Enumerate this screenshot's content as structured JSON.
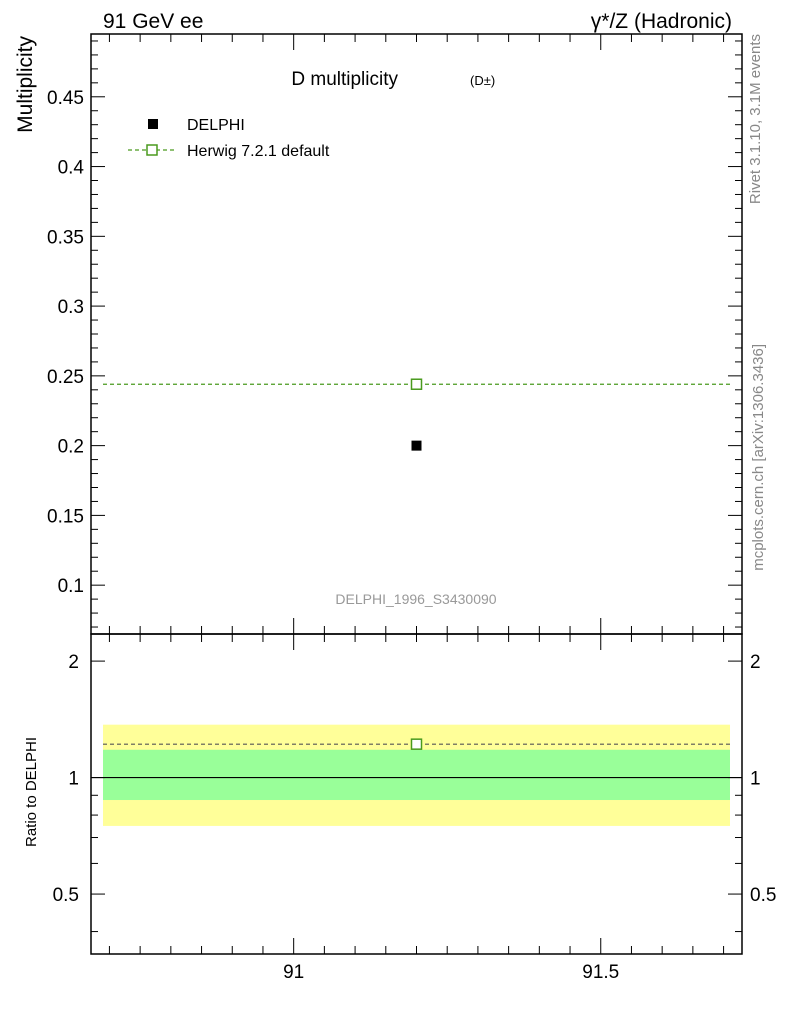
{
  "header": {
    "left": "91 GeV ee",
    "right": "γ*/Z (Hadronic)"
  },
  "side_texts": {
    "rivet": "Rivet 3.1.10,  3.1M events",
    "source": "mcplots.cern.ch [arXiv:1306.3436]"
  },
  "chart_data": [
    {
      "type": "scatter",
      "title": "D multiplicity",
      "title_sub": "(D±)",
      "ylabel": "Multiplicity",
      "analysis_label": "DELPHI_1996_S3430090",
      "xlim": [
        90.67,
        91.73
      ],
      "ylim": [
        0.065,
        0.495
      ],
      "x_ticks": [
        91,
        91.5
      ],
      "y_ticks": [
        0.1,
        0.15,
        0.2,
        0.25,
        0.3,
        0.35,
        0.4,
        0.45
      ],
      "y_tick_labels": [
        "0.1",
        "0.15",
        "0.2",
        "0.25",
        "0.3",
        "0.35",
        "0.4",
        "0.45"
      ],
      "legend_position": "top-left",
      "series": [
        {
          "name": "DELPHI",
          "x": [
            91.2
          ],
          "y": [
            0.2
          ],
          "color": "#000000",
          "marker": "filled-square"
        },
        {
          "name": "Herwig 7.2.1 default",
          "x": [
            91.2
          ],
          "y": [
            0.244
          ],
          "color": "#4a9a1e",
          "marker": "open-square",
          "line": "dashed-flat"
        }
      ]
    },
    {
      "type": "scatter",
      "ylabel": "Ratio to DELPHI",
      "xlim": [
        90.67,
        91.73
      ],
      "ylim": [
        0.35,
        2.35
      ],
      "y_scale": "log",
      "x_ticks": [
        91,
        91.5
      ],
      "x_tick_labels": [
        "91",
        "91.5"
      ],
      "y_ticks": [
        0.5,
        1,
        2
      ],
      "y_tick_labels": [
        "0.5",
        "1",
        "2"
      ],
      "bands": [
        {
          "name": "outer uncertainty",
          "lower": 0.75,
          "upper": 1.37,
          "color": "#ffff99"
        },
        {
          "name": "inner uncertainty",
          "lower": 0.875,
          "upper": 1.18,
          "color": "#99ff99"
        }
      ],
      "reference_line": 1,
      "series": [
        {
          "name": "Herwig 7.2.1 default",
          "x": [
            91.2
          ],
          "y": [
            1.22
          ],
          "color": "#4a9a1e",
          "marker": "open-square"
        }
      ]
    }
  ]
}
